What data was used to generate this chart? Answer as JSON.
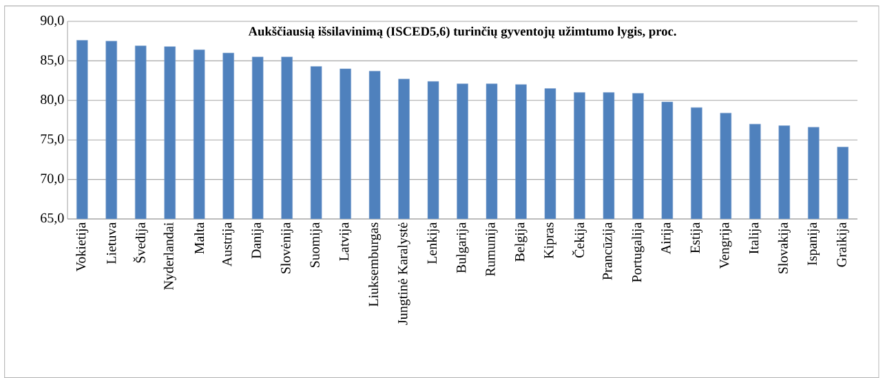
{
  "chart_data": {
    "type": "bar",
    "title": "**Aukščiausią išsilavinimą (ISCED5,6) turinčių gyventojų užimtumo lygis, proc.**",
    "categories": [
      "Vokietija",
      "Lietuva",
      "Švedija",
      "Nyderlandai",
      "Malta",
      "Austrija",
      "Danija",
      "Slovėnija",
      "Suomija",
      "Latvija",
      "Liuksemburgas",
      "Jungtinė Karalystė",
      "Lenkija",
      "Bulgarija",
      "Rumunija",
      "Belgija",
      "Kipras",
      "Čekija",
      "Prancūzija",
      "Portugalija",
      "Airija",
      "Estija",
      "Vengrija",
      "Italija",
      "Slovakija",
      "Ispanija",
      "Graikija"
    ],
    "values": [
      87.6,
      87.5,
      86.9,
      86.8,
      86.4,
      86.0,
      85.5,
      85.5,
      84.3,
      84.0,
      83.7,
      82.7,
      82.4,
      82.1,
      82.1,
      82.0,
      81.5,
      81.0,
      81.0,
      80.9,
      79.8,
      79.1,
      78.4,
      77.0,
      76.8,
      76.6,
      74.1
    ],
    "color": "#4f81bd",
    "ylim": [
      65,
      90
    ],
    "yticks": [
      {
        "value": 65,
        "label": "65,0"
      },
      {
        "value": 70,
        "label": "70,0"
      },
      {
        "value": 75,
        "label": "75,0"
      },
      {
        "value": 80,
        "label": "80,0"
      },
      {
        "value": 85,
        "label": "85,0"
      },
      {
        "value": 90,
        "label": "90,0"
      }
    ],
    "grid": "y"
  }
}
